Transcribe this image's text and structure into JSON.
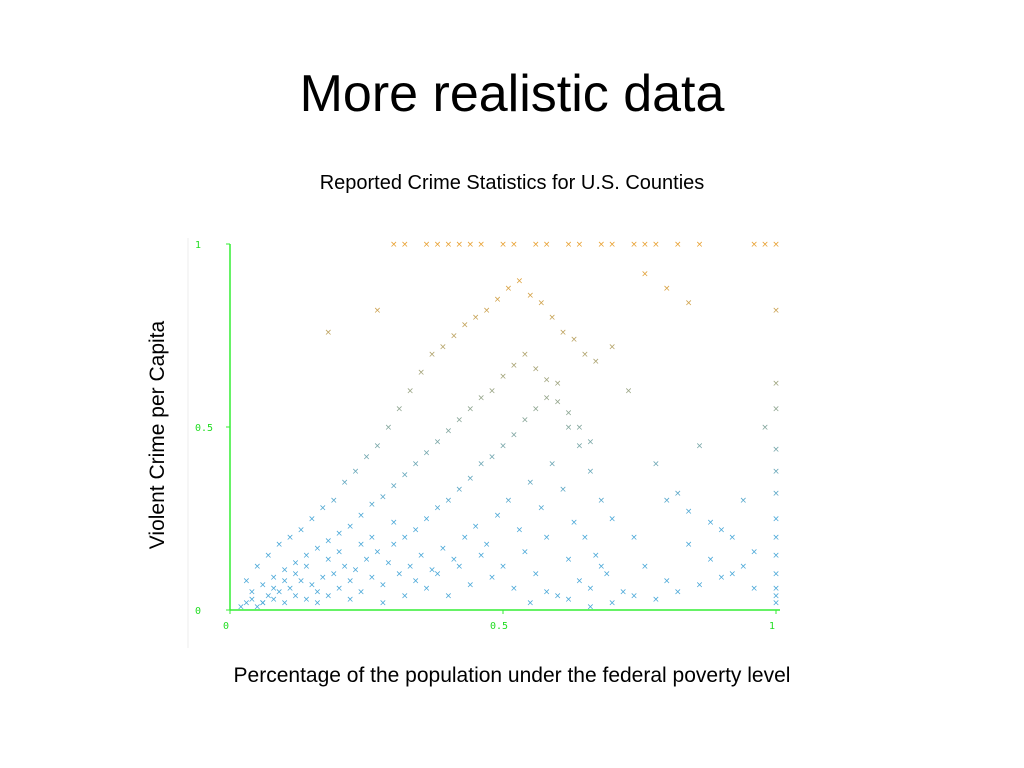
{
  "slide": {
    "title": "More realistic data"
  },
  "chart_data": {
    "type": "scatter",
    "title": "Reported Crime Statistics for U.S. Counties",
    "xlabel": "Percentage of the population under the federal poverty level",
    "ylabel": "Violent Crime per Capita",
    "xlim": [
      0,
      1
    ],
    "ylim": [
      0,
      1
    ],
    "xticks": [
      "0",
      "0.5",
      "1"
    ],
    "yticks": [
      "0",
      "0.5",
      "1"
    ],
    "marker": "x",
    "axis_color": "#33ee33",
    "color_low": "#4aa8d8",
    "color_high": "#e8a030",
    "grid": false,
    "points": [
      [
        0.02,
        0.01
      ],
      [
        0.03,
        0.02
      ],
      [
        0.04,
        0.03
      ],
      [
        0.05,
        0.01
      ],
      [
        0.06,
        0.02
      ],
      [
        0.07,
        0.04
      ],
      [
        0.08,
        0.03
      ],
      [
        0.09,
        0.05
      ],
      [
        0.1,
        0.02
      ],
      [
        0.11,
        0.06
      ],
      [
        0.12,
        0.04
      ],
      [
        0.13,
        0.08
      ],
      [
        0.14,
        0.03
      ],
      [
        0.15,
        0.07
      ],
      [
        0.16,
        0.05
      ],
      [
        0.17,
        0.09
      ],
      [
        0.18,
        0.04
      ],
      [
        0.19,
        0.1
      ],
      [
        0.2,
        0.06
      ],
      [
        0.21,
        0.12
      ],
      [
        0.22,
        0.08
      ],
      [
        0.23,
        0.11
      ],
      [
        0.24,
        0.05
      ],
      [
        0.25,
        0.14
      ],
      [
        0.26,
        0.09
      ],
      [
        0.27,
        0.16
      ],
      [
        0.28,
        0.07
      ],
      [
        0.29,
        0.13
      ],
      [
        0.3,
        0.18
      ],
      [
        0.31,
        0.1
      ],
      [
        0.32,
        0.2
      ],
      [
        0.33,
        0.12
      ],
      [
        0.34,
        0.22
      ],
      [
        0.35,
        0.15
      ],
      [
        0.36,
        0.25
      ],
      [
        0.37,
        0.11
      ],
      [
        0.38,
        0.28
      ],
      [
        0.39,
        0.17
      ],
      [
        0.4,
        0.3
      ],
      [
        0.41,
        0.14
      ],
      [
        0.42,
        0.33
      ],
      [
        0.43,
        0.2
      ],
      [
        0.44,
        0.36
      ],
      [
        0.45,
        0.23
      ],
      [
        0.46,
        0.4
      ],
      [
        0.47,
        0.18
      ],
      [
        0.48,
        0.42
      ],
      [
        0.49,
        0.26
      ],
      [
        0.5,
        0.45
      ],
      [
        0.51,
        0.3
      ],
      [
        0.52,
        0.48
      ],
      [
        0.53,
        0.22
      ],
      [
        0.54,
        0.52
      ],
      [
        0.55,
        0.35
      ],
      [
        0.56,
        0.55
      ],
      [
        0.57,
        0.28
      ],
      [
        0.58,
        0.58
      ],
      [
        0.59,
        0.4
      ],
      [
        0.6,
        0.62
      ],
      [
        0.61,
        0.33
      ],
      [
        0.62,
        0.5
      ],
      [
        0.63,
        0.24
      ],
      [
        0.64,
        0.45
      ],
      [
        0.65,
        0.2
      ],
      [
        0.66,
        0.38
      ],
      [
        0.67,
        0.15
      ],
      [
        0.68,
        0.3
      ],
      [
        0.69,
        0.1
      ],
      [
        0.7,
        0.25
      ],
      [
        0.72,
        0.05
      ],
      [
        0.74,
        0.2
      ],
      [
        0.76,
        0.12
      ],
      [
        0.78,
        0.4
      ],
      [
        0.8,
        0.08
      ],
      [
        0.82,
        0.32
      ],
      [
        0.84,
        0.18
      ],
      [
        0.86,
        0.45
      ],
      [
        0.88,
        0.14
      ],
      [
        0.9,
        0.22
      ],
      [
        0.92,
        0.1
      ],
      [
        0.94,
        0.3
      ],
      [
        0.96,
        0.06
      ],
      [
        0.98,
        0.5
      ],
      [
        1.0,
        0.02
      ],
      [
        1.0,
        0.04
      ],
      [
        1.0,
        0.06
      ],
      [
        1.0,
        0.1
      ],
      [
        1.0,
        0.15
      ],
      [
        1.0,
        0.2
      ],
      [
        1.0,
        0.25
      ],
      [
        1.0,
        0.32
      ],
      [
        1.0,
        0.38
      ],
      [
        1.0,
        0.44
      ],
      [
        1.0,
        0.55
      ],
      [
        1.0,
        0.62
      ],
      [
        1.0,
        0.82
      ],
      [
        0.03,
        0.08
      ],
      [
        0.05,
        0.12
      ],
      [
        0.07,
        0.15
      ],
      [
        0.09,
        0.18
      ],
      [
        0.11,
        0.2
      ],
      [
        0.13,
        0.22
      ],
      [
        0.15,
        0.25
      ],
      [
        0.17,
        0.28
      ],
      [
        0.19,
        0.3
      ],
      [
        0.21,
        0.35
      ],
      [
        0.23,
        0.38
      ],
      [
        0.25,
        0.42
      ],
      [
        0.27,
        0.45
      ],
      [
        0.29,
        0.5
      ],
      [
        0.31,
        0.55
      ],
      [
        0.33,
        0.6
      ],
      [
        0.35,
        0.65
      ],
      [
        0.37,
        0.7
      ],
      [
        0.39,
        0.72
      ],
      [
        0.41,
        0.75
      ],
      [
        0.43,
        0.78
      ],
      [
        0.45,
        0.8
      ],
      [
        0.47,
        0.82
      ],
      [
        0.49,
        0.85
      ],
      [
        0.51,
        0.88
      ],
      [
        0.53,
        0.9
      ],
      [
        0.55,
        0.86
      ],
      [
        0.57,
        0.84
      ],
      [
        0.59,
        0.8
      ],
      [
        0.61,
        0.76
      ],
      [
        0.63,
        0.74
      ],
      [
        0.65,
        0.7
      ],
      [
        0.67,
        0.68
      ],
      [
        0.7,
        0.72
      ],
      [
        0.73,
        0.6
      ],
      [
        0.76,
        0.92
      ],
      [
        0.8,
        0.88
      ],
      [
        0.84,
        0.84
      ],
      [
        0.27,
        0.82
      ],
      [
        0.18,
        0.76
      ],
      [
        0.3,
        1.0
      ],
      [
        0.32,
        1.0
      ],
      [
        0.36,
        1.0
      ],
      [
        0.38,
        1.0
      ],
      [
        0.4,
        1.0
      ],
      [
        0.42,
        1.0
      ],
      [
        0.44,
        1.0
      ],
      [
        0.46,
        1.0
      ],
      [
        0.5,
        1.0
      ],
      [
        0.52,
        1.0
      ],
      [
        0.56,
        1.0
      ],
      [
        0.58,
        1.0
      ],
      [
        0.62,
        1.0
      ],
      [
        0.64,
        1.0
      ],
      [
        0.68,
        1.0
      ],
      [
        0.7,
        1.0
      ],
      [
        0.74,
        1.0
      ],
      [
        0.76,
        1.0
      ],
      [
        0.78,
        1.0
      ],
      [
        0.82,
        1.0
      ],
      [
        0.86,
        1.0
      ],
      [
        0.96,
        1.0
      ],
      [
        0.98,
        1.0
      ],
      [
        1.0,
        1.0
      ],
      [
        0.06,
        0.02
      ],
      [
        0.08,
        0.06
      ],
      [
        0.1,
        0.08
      ],
      [
        0.12,
        0.1
      ],
      [
        0.14,
        0.12
      ],
      [
        0.16,
        0.02
      ],
      [
        0.18,
        0.14
      ],
      [
        0.2,
        0.16
      ],
      [
        0.22,
        0.03
      ],
      [
        0.24,
        0.18
      ],
      [
        0.26,
        0.2
      ],
      [
        0.28,
        0.02
      ],
      [
        0.3,
        0.24
      ],
      [
        0.32,
        0.04
      ],
      [
        0.34,
        0.08
      ],
      [
        0.36,
        0.06
      ],
      [
        0.38,
        0.1
      ],
      [
        0.4,
        0.04
      ],
      [
        0.42,
        0.12
      ],
      [
        0.44,
        0.07
      ],
      [
        0.46,
        0.15
      ],
      [
        0.48,
        0.09
      ],
      [
        0.5,
        0.12
      ],
      [
        0.52,
        0.06
      ],
      [
        0.54,
        0.16
      ],
      [
        0.56,
        0.1
      ],
      [
        0.58,
        0.2
      ],
      [
        0.6,
        0.04
      ],
      [
        0.62,
        0.14
      ],
      [
        0.64,
        0.08
      ],
      [
        0.66,
        0.06
      ],
      [
        0.68,
        0.12
      ],
      [
        0.04,
        0.05
      ],
      [
        0.06,
        0.07
      ],
      [
        0.08,
        0.09
      ],
      [
        0.1,
        0.11
      ],
      [
        0.12,
        0.13
      ],
      [
        0.14,
        0.15
      ],
      [
        0.16,
        0.17
      ],
      [
        0.18,
        0.19
      ],
      [
        0.2,
        0.21
      ],
      [
        0.22,
        0.23
      ],
      [
        0.24,
        0.26
      ],
      [
        0.26,
        0.29
      ],
      [
        0.28,
        0.31
      ],
      [
        0.3,
        0.34
      ],
      [
        0.32,
        0.37
      ],
      [
        0.34,
        0.4
      ],
      [
        0.36,
        0.43
      ],
      [
        0.38,
        0.46
      ],
      [
        0.4,
        0.49
      ],
      [
        0.42,
        0.52
      ],
      [
        0.44,
        0.55
      ],
      [
        0.46,
        0.58
      ],
      [
        0.48,
        0.6
      ],
      [
        0.5,
        0.64
      ],
      [
        0.52,
        0.67
      ],
      [
        0.54,
        0.7
      ],
      [
        0.56,
        0.66
      ],
      [
        0.58,
        0.63
      ],
      [
        0.6,
        0.57
      ],
      [
        0.62,
        0.54
      ],
      [
        0.64,
        0.5
      ],
      [
        0.66,
        0.46
      ],
      [
        0.55,
        0.02
      ],
      [
        0.58,
        0.05
      ],
      [
        0.62,
        0.03
      ],
      [
        0.66,
        0.01
      ],
      [
        0.7,
        0.02
      ],
      [
        0.74,
        0.04
      ],
      [
        0.78,
        0.03
      ],
      [
        0.82,
        0.05
      ],
      [
        0.86,
        0.07
      ],
      [
        0.9,
        0.09
      ],
      [
        0.94,
        0.12
      ],
      [
        0.96,
        0.16
      ],
      [
        0.92,
        0.2
      ],
      [
        0.88,
        0.24
      ],
      [
        0.84,
        0.27
      ],
      [
        0.8,
        0.3
      ]
    ]
  }
}
